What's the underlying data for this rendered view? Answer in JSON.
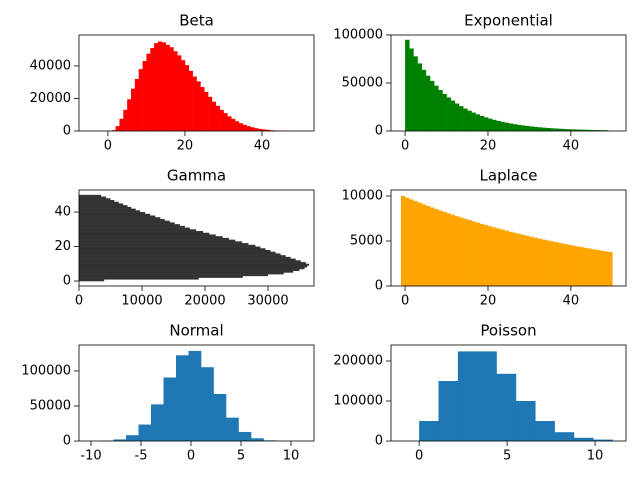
{
  "chart_data": [
    {
      "type": "histogram",
      "title": "Beta",
      "color": "#ff0000",
      "bins": [
        1,
        2,
        3,
        4,
        5,
        6,
        7,
        8,
        9,
        10,
        11,
        12,
        13,
        14,
        15,
        16,
        17,
        18,
        19,
        20,
        21,
        22,
        23,
        24,
        25,
        26,
        27,
        28,
        29,
        30,
        31,
        32,
        33,
        34,
        35,
        36,
        37,
        38,
        39,
        40,
        41,
        42,
        43,
        44,
        45,
        46,
        47
      ],
      "values": [
        500,
        3000,
        7500,
        13000,
        19500,
        26000,
        32000,
        38000,
        43000,
        47500,
        51000,
        54000,
        55000,
        54500,
        53000,
        51500,
        49000,
        46500,
        43500,
        40500,
        37000,
        33500,
        30500,
        27000,
        24000,
        21000,
        18000,
        15500,
        13000,
        11000,
        9000,
        7500,
        6000,
        4800,
        3800,
        3000,
        2300,
        1700,
        1300,
        1000,
        700,
        500,
        350,
        250,
        150,
        100
      ],
      "xlim": [
        -7.5,
        53.5
      ],
      "xticks": [
        0,
        20,
        40
      ],
      "ylim": [
        0,
        59000
      ],
      "yticks": [
        0,
        20000,
        40000
      ]
    },
    {
      "type": "histogram",
      "title": "Exponential",
      "color": "#008000",
      "bins": [
        0,
        1,
        2,
        3,
        4,
        5,
        6,
        7,
        8,
        9,
        10,
        11,
        12,
        13,
        14,
        15,
        16,
        17,
        18,
        19,
        20,
        21,
        22,
        23,
        24,
        25,
        26,
        27,
        28,
        29,
        30,
        31,
        32,
        33,
        34,
        35,
        36,
        37,
        38,
        39,
        40,
        41,
        42,
        43,
        44,
        45,
        46,
        47,
        48,
        49
      ],
      "values": [
        95000,
        85960,
        77780,
        70380,
        63680,
        57620,
        52140,
        47170,
        42680,
        38620,
        34950,
        31620,
        28610,
        25890,
        23420,
        21190,
        19180,
        17350,
        15700,
        14210,
        12850,
        11630,
        10520,
        9520,
        8620,
        7800,
        7050,
        6380,
        5780,
        5230,
        4730,
        4280,
        3870,
        3500,
        3170,
        2870,
        2600,
        2350,
        2120,
        1920,
        1740,
        1570,
        1420,
        1290,
        1170,
        1050,
        950,
        860,
        780
      ],
      "xlim": [
        -3.4,
        53.3
      ],
      "xticks": [
        0,
        20,
        40
      ],
      "ylim": [
        0,
        100000
      ],
      "yticks": [
        0,
        50000,
        100000
      ]
    },
    {
      "type": "histogram",
      "orientation": "horizontal",
      "title": "Gamma",
      "color": "#333333",
      "bins": [
        0,
        1,
        2,
        3,
        4,
        5,
        6,
        7,
        8,
        9,
        10,
        11,
        12,
        13,
        14,
        15,
        16,
        17,
        18,
        19,
        20,
        21,
        22,
        23,
        24,
        25,
        26,
        27,
        28,
        29,
        30,
        31,
        32,
        33,
        34,
        35,
        36,
        37,
        38,
        39,
        40,
        41,
        42,
        43,
        44,
        45,
        46,
        47,
        48,
        49,
        50
      ],
      "values": [
        4000,
        19000,
        26000,
        30000,
        32500,
        34000,
        35000,
        35800,
        36200,
        36500,
        36000,
        35200,
        34400,
        33600,
        32800,
        32000,
        31200,
        30400,
        29600,
        28800,
        28000,
        26900,
        25900,
        24800,
        23800,
        22800,
        21700,
        20700,
        19700,
        18600,
        17600,
        16800,
        16000,
        15200,
        14400,
        13600,
        12900,
        12100,
        11300,
        10500,
        9700,
        9000,
        8300,
        7700,
        7000,
        6300,
        5600,
        5000,
        4300,
        3500
      ],
      "xlim": [
        0,
        37300
      ],
      "xticks": [
        0,
        10000,
        20000,
        30000
      ],
      "ylim": [
        -2.9,
        52.8
      ],
      "yticks": [
        0,
        20,
        40
      ]
    },
    {
      "type": "histogram",
      "title": "Laplace",
      "color": "#ffa500",
      "bins": [
        -1,
        0,
        1,
        2,
        3,
        4,
        5,
        6,
        7,
        8,
        9,
        10,
        11,
        12,
        13,
        14,
        15,
        16,
        17,
        18,
        19,
        20,
        21,
        22,
        23,
        24,
        25,
        26,
        27,
        28,
        29,
        30,
        31,
        32,
        33,
        34,
        35,
        36,
        37,
        38,
        39,
        40,
        41,
        42,
        43,
        44,
        45,
        46,
        47,
        48,
        49,
        50
      ],
      "values": [
        10000,
        9807,
        9618,
        9432,
        9250,
        9072,
        8897,
        8725,
        8557,
        8392,
        8230,
        8071,
        7915,
        7763,
        7613,
        7466,
        7322,
        7181,
        7042,
        6906,
        6773,
        6642,
        6514,
        6389,
        6265,
        6144,
        6026,
        5910,
        5796,
        5684,
        5574,
        5467,
        5361,
        5258,
        5156,
        5057,
        4959,
        4864,
        4770,
        4678,
        4587,
        4499,
        4412,
        4327,
        4244,
        4162,
        4082,
        4003,
        3926,
        3850,
        3776
      ],
      "xlim": [
        -3.4,
        53.3
      ],
      "xticks": [
        0,
        20,
        40
      ],
      "ylim": [
        0,
        10667
      ],
      "yticks": [
        0,
        5000,
        10000
      ]
    },
    {
      "type": "histogram",
      "title": "Normal",
      "color": "#1f77b4",
      "bins": [
        -9,
        -7.75,
        -6.5,
        -5.25,
        -4,
        -2.75,
        -1.5,
        -0.25,
        1,
        2.25,
        3.5,
        4.75,
        6,
        7.25,
        8.5,
        9.75,
        11
      ],
      "values": [
        476,
        2240,
        8230,
        23500,
        52300,
        90600,
        122300,
        128600,
        105300,
        67100,
        33300,
        12900,
        3890,
        910,
        170,
        20
      ],
      "xlim": [
        -11.2,
        12.3
      ],
      "xticks": [
        -10,
        -5,
        0,
        5,
        10
      ],
      "ylim": [
        0,
        137000
      ],
      "yticks": [
        0,
        50000,
        100000
      ]
    },
    {
      "type": "histogram",
      "title": "Poisson",
      "color": "#1f77b4",
      "bins": [
        0,
        1.1,
        2.2,
        3.3,
        4.4,
        5.5,
        6.6,
        7.7,
        8.8,
        9.9,
        11
      ],
      "values": [
        50000,
        150000,
        224000,
        224000,
        168000,
        100000,
        50000,
        22000,
        8000,
        3500
      ],
      "xlim": [
        -1.6,
        11.76
      ],
      "xticks": [
        0,
        5,
        10
      ],
      "ylim": [
        0,
        240000
      ],
      "yticks": [
        0,
        100000,
        200000
      ]
    }
  ]
}
